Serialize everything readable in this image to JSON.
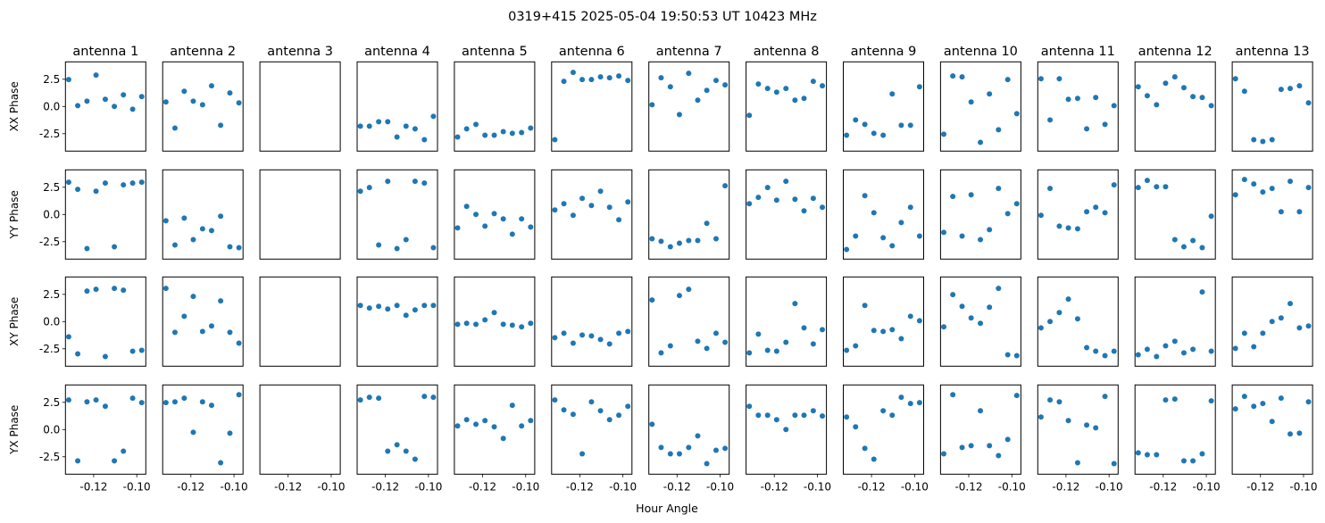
{
  "chart_data": {
    "type": "scatter",
    "title": "0319+415  2025-05-04 19:50:53 UT  10423 MHz",
    "xlabel": "Hour Angle",
    "row_labels": [
      "XX Phase",
      "YY Phase",
      "XY Phase",
      "YX Phase"
    ],
    "col_titles": [
      "antenna 1",
      "antenna 2",
      "antenna 3",
      "antenna 4",
      "antenna 5",
      "antenna 6",
      "antenna 7",
      "antenna 8",
      "antenna 9",
      "antenna 10",
      "antenna 11",
      "antenna 12",
      "antenna 13"
    ],
    "xlim": [
      -0.1331,
      -0.0958
    ],
    "ylim": [
      -4.1,
      4.1
    ],
    "xticks": [
      -0.12,
      -0.1
    ],
    "xtick_labels": [
      "-0.12",
      "-0.10"
    ],
    "yticks": [
      2.5,
      0.0,
      -2.5
    ],
    "ytick_labels": [
      "2.5",
      "0.0",
      "-2.5"
    ],
    "marker_color": "#1f77b4",
    "x": [
      -0.1316,
      -0.1274,
      -0.1231,
      -0.1189,
      -0.1146,
      -0.1104,
      -0.1062,
      -0.1019,
      -0.0977
    ],
    "series": [
      {
        "name": "XX Phase",
        "values": [
          [
            2.47,
            0.08,
            0.49,
            2.88,
            0.66,
            0.0,
            1.07,
            -0.25,
            0.91
          ],
          [
            0.41,
            -1.98,
            1.4,
            0.49,
            0.16,
            1.9,
            -1.73,
            1.24,
            0.33
          ],
          [],
          [
            -1.81,
            -1.81,
            -1.4,
            -1.4,
            -2.8,
            -1.81,
            -2.06,
            -3.05,
            -0.91
          ],
          [
            -2.8,
            -2.06,
            -1.65,
            -2.64,
            -2.64,
            -2.31,
            -2.47,
            -2.39,
            -1.98
          ],
          [
            -3.05,
            2.31,
            3.13,
            2.47,
            2.47,
            2.72,
            2.64,
            2.8,
            2.39
          ],
          [
            0.16,
            2.64,
            1.81,
            -0.74,
            3.05,
            0.58,
            1.48,
            2.39,
            1.98
          ],
          [
            -0.82,
            2.06,
            1.65,
            1.32,
            1.65,
            0.58,
            0.74,
            2.31,
            1.9
          ],
          [
            -2.64,
            -1.24,
            -1.65,
            -2.47,
            -2.64,
            1.15,
            -1.73,
            -1.73,
            1.81
          ],
          [
            -2.55,
            2.8,
            2.72,
            0.41,
            -3.3,
            1.15,
            -2.14,
            2.47,
            -0.66
          ],
          [
            2.55,
            -1.24,
            2.55,
            0.66,
            0.74,
            -2.06,
            0.82,
            -1.65,
            0.08
          ],
          [
            1.81,
            0.99,
            0.16,
            2.14,
            2.72,
            1.73,
            0.91,
            0.82,
            0.08
          ],
          [
            2.55,
            1.4,
            -3.05,
            -3.21,
            -3.05,
            1.57,
            1.65,
            1.9,
            0.33
          ]
        ]
      },
      {
        "name": "YY Phase",
        "values": [
          [
            2.97,
            2.31,
            -3.13,
            2.14,
            2.88,
            -2.97,
            2.72,
            2.88,
            2.97
          ],
          [
            -0.58,
            -2.8,
            -0.33,
            -2.31,
            -1.32,
            -1.48,
            -0.16,
            -2.97,
            -3.05
          ],
          [],
          [
            2.14,
            2.47,
            -2.8,
            3.05,
            -3.13,
            -2.31,
            3.05,
            2.88,
            -3.05
          ],
          [
            -1.24,
            0.74,
            0.0,
            -1.07,
            0.08,
            -0.41,
            -1.81,
            -0.41,
            -1.15
          ],
          [
            0.41,
            0.99,
            -0.08,
            1.48,
            0.82,
            2.14,
            0.66,
            -0.49,
            1.15
          ],
          [
            -2.23,
            -2.47,
            -2.97,
            -2.64,
            -2.39,
            -2.39,
            -0.82,
            -2.23,
            2.64
          ],
          [
            0.99,
            1.57,
            2.47,
            1.32,
            3.05,
            1.4,
            0.33,
            1.48,
            0.66
          ],
          [
            -3.21,
            -1.98,
            1.73,
            0.16,
            -2.14,
            -2.88,
            -0.74,
            0.66,
            -1.98
          ],
          [
            -1.65,
            1.65,
            -1.98,
            1.81,
            -2.31,
            -1.4,
            2.39,
            0.08,
            0.99
          ],
          [
            -0.08,
            2.39,
            -1.07,
            -1.24,
            -1.32,
            0.25,
            0.66,
            0.16,
            2.72
          ],
          [
            2.47,
            3.13,
            2.55,
            2.55,
            -2.31,
            -2.97,
            -2.39,
            -3.05,
            -0.16
          ],
          [
            1.81,
            3.21,
            2.8,
            2.06,
            2.39,
            0.25,
            3.05,
            0.25,
            2.47
          ]
        ]
      },
      {
        "name": "XY Phase",
        "values": [
          [
            -1.4,
            -2.97,
            2.8,
            2.97,
            -3.21,
            3.05,
            2.88,
            -2.72,
            -2.64
          ],
          [
            3.05,
            -0.99,
            0.49,
            2.31,
            -0.91,
            -0.41,
            1.9,
            -0.99,
            -1.98
          ],
          [],
          [
            1.48,
            1.24,
            1.4,
            1.15,
            1.48,
            0.58,
            1.07,
            1.48,
            1.48
          ],
          [
            -0.25,
            -0.16,
            -0.25,
            0.16,
            0.82,
            -0.25,
            -0.33,
            -0.49,
            -0.16
          ],
          [
            -1.48,
            -1.07,
            -1.98,
            -1.24,
            -1.32,
            -1.65,
            -2.06,
            -1.07,
            -0.91
          ],
          [
            1.98,
            -2.88,
            -2.23,
            2.39,
            2.97,
            -1.81,
            -2.47,
            -1.07,
            -1.9
          ],
          [
            -2.88,
            -1.15,
            -2.64,
            -2.72,
            -1.9,
            1.65,
            -0.58,
            -2.06,
            -0.74
          ],
          [
            -2.64,
            -2.23,
            1.48,
            -0.82,
            -0.91,
            -0.74,
            -1.57,
            0.49,
            0.08
          ],
          [
            -0.49,
            2.47,
            1.4,
            0.33,
            -0.16,
            1.32,
            3.05,
            -3.05,
            -3.13
          ],
          [
            -0.58,
            0.0,
            0.82,
            2.06,
            0.25,
            -2.39,
            -2.72,
            -3.13,
            -2.72
          ],
          [
            -3.05,
            -2.55,
            -3.21,
            -2.23,
            -1.81,
            -2.88,
            -2.55,
            2.72,
            -2.72
          ],
          [
            -2.47,
            -1.07,
            -2.31,
            -1.07,
            0.0,
            0.33,
            1.65,
            -0.58,
            -0.41
          ]
        ]
      },
      {
        "name": "YX Phase",
        "values": [
          [
            2.72,
            -2.88,
            2.55,
            2.72,
            2.14,
            -2.88,
            -1.98,
            2.88,
            2.47
          ],
          [
            2.47,
            2.55,
            2.88,
            -0.25,
            2.55,
            2.23,
            -3.05,
            -0.33,
            3.2
          ],
          [],
          [
            2.72,
            2.97,
            2.88,
            -1.98,
            -1.4,
            -1.98,
            -2.72,
            3.05,
            2.97
          ],
          [
            0.33,
            0.91,
            0.49,
            0.82,
            0.25,
            -0.82,
            2.23,
            0.33,
            0.82
          ],
          [
            2.72,
            1.81,
            1.4,
            -2.23,
            2.55,
            1.73,
            0.91,
            1.32,
            2.14
          ],
          [
            0.49,
            -1.65,
            -2.23,
            -2.23,
            -1.65,
            -0.58,
            -3.13,
            -1.9,
            -1.73
          ],
          [
            2.14,
            1.32,
            1.32,
            0.91,
            0.0,
            1.32,
            1.32,
            1.73,
            1.24
          ],
          [
            1.15,
            0.25,
            -1.73,
            -2.72,
            1.73,
            1.32,
            2.97,
            2.39,
            2.47
          ],
          [
            -2.23,
            3.2,
            -1.65,
            -1.48,
            1.73,
            -1.48,
            -2.39,
            -0.91,
            3.13
          ],
          [
            1.15,
            2.72,
            2.55,
            0.82,
            -3.05,
            0.41,
            0.16,
            3.05,
            -3.13
          ],
          [
            -2.14,
            -2.31,
            -2.31,
            2.72,
            2.8,
            -2.88,
            -2.88,
            -2.23,
            2.64
          ],
          [
            1.9,
            3.05,
            2.14,
            2.39,
            0.74,
            2.88,
            -0.41,
            -0.33,
            2.55
          ]
        ]
      }
    ]
  }
}
